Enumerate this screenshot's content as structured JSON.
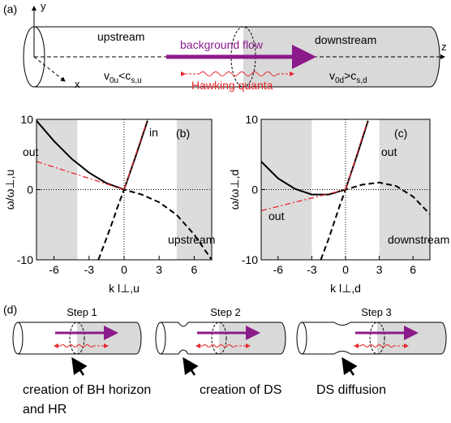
{
  "panel_a": {
    "label": "(a)",
    "axis_y": "y",
    "axis_z": "z",
    "axis_x": "x",
    "upstream": "upstream",
    "downstream": "downstream",
    "flow": "background flow",
    "quanta": "Hawking quanta",
    "cond_u": {
      "v": "v",
      "sub1": "0u",
      "rel": "<c",
      "sub2": "s,u"
    },
    "cond_d": {
      "v": "v",
      "sub1": "0d",
      "rel": ">c",
      "sub2": "s,d"
    }
  },
  "chart_data": [
    {
      "type": "line",
      "panel": "(b)",
      "ylabel": "ω/ω⊥,u",
      "xlabel": "k l⊥,u",
      "xlim": [
        -7.5,
        7.5
      ],
      "ylim": [
        -10,
        10
      ],
      "xticks": [
        -6,
        -3,
        0,
        3,
        6
      ],
      "yticks": [
        -10,
        0,
        10
      ],
      "shaded": [
        [
          -7.5,
          -4
        ],
        [
          4.5,
          7.5
        ]
      ],
      "shade_color": "#dcdcdc",
      "lines": [
        {
          "style": "solid",
          "color": "#000000",
          "x": [
            -7.5,
            -6,
            -4.5,
            -3,
            -1.5,
            0,
            0.5,
            1,
            1.5,
            2
          ],
          "y": [
            9.8,
            6.9,
            4.4,
            2.4,
            0.9,
            0,
            2.4,
            4.8,
            7.3,
            9.8
          ]
        },
        {
          "style": "dashed",
          "color": "#000000",
          "x": [
            -2.2,
            -1.5,
            -1,
            -0.5,
            0,
            1.5,
            3,
            4.5,
            6,
            7.5
          ],
          "y": [
            -10,
            -6.9,
            -4.6,
            -2.2,
            0,
            -0.7,
            -1.8,
            -3.6,
            -6.4,
            -10
          ]
        },
        {
          "style": "dashdot",
          "color": "#e8262a",
          "x": [
            -7.5,
            0
          ],
          "y": [
            4,
            0
          ]
        },
        {
          "style": "dashdot",
          "color": "#e8262a",
          "x": [
            0,
            2
          ],
          "y": [
            0,
            10
          ]
        }
      ],
      "annotations": [
        "in",
        "out",
        "upstream"
      ]
    },
    {
      "type": "line",
      "panel": "(c)",
      "ylabel": "ω/ω⊥,d",
      "xlabel": "k l⊥,d",
      "xlim": [
        -7.5,
        7.5
      ],
      "ylim": [
        -10,
        10
      ],
      "xticks": [
        -6,
        -3,
        0,
        3,
        6
      ],
      "yticks": [
        -10,
        0,
        10
      ],
      "shaded": [
        [
          -7.5,
          -3
        ],
        [
          3,
          7.5
        ]
      ],
      "shade_color": "#dcdcdc",
      "lines": [
        {
          "style": "solid",
          "color": "#000000",
          "x": [
            -7.5,
            -6,
            -4.5,
            -3,
            -1.5,
            0,
            0.5,
            1,
            1.5,
            2
          ],
          "y": [
            4,
            1.6,
            0.1,
            -0.7,
            -0.7,
            0,
            2.4,
            4.8,
            7.3,
            9.8
          ]
        },
        {
          "style": "dashed",
          "color": "#000000",
          "x": [
            -2.2,
            -1.5,
            -1,
            -0.5,
            0,
            1.5,
            3,
            4.5,
            6,
            7.5
          ],
          "y": [
            -10,
            -7,
            -4.6,
            -2.2,
            0,
            0.7,
            1,
            0.5,
            -1,
            -3.5
          ]
        },
        {
          "style": "dashdot",
          "color": "#e8262a",
          "x": [
            -7.5,
            0
          ],
          "y": [
            -3,
            0
          ]
        },
        {
          "style": "dashdot",
          "color": "#e8262a",
          "x": [
            0,
            2
          ],
          "y": [
            0,
            10
          ]
        }
      ],
      "annotations": [
        "out",
        "out",
        "downstream"
      ]
    }
  ],
  "panel_d": {
    "label": "(d)",
    "steps": [
      "Step 1",
      "Step 2",
      "Step 3"
    ],
    "captions": [
      "creation of BH horizon",
      "creation of DS",
      "DS diffusion"
    ],
    "caption_extra": "and HR"
  }
}
